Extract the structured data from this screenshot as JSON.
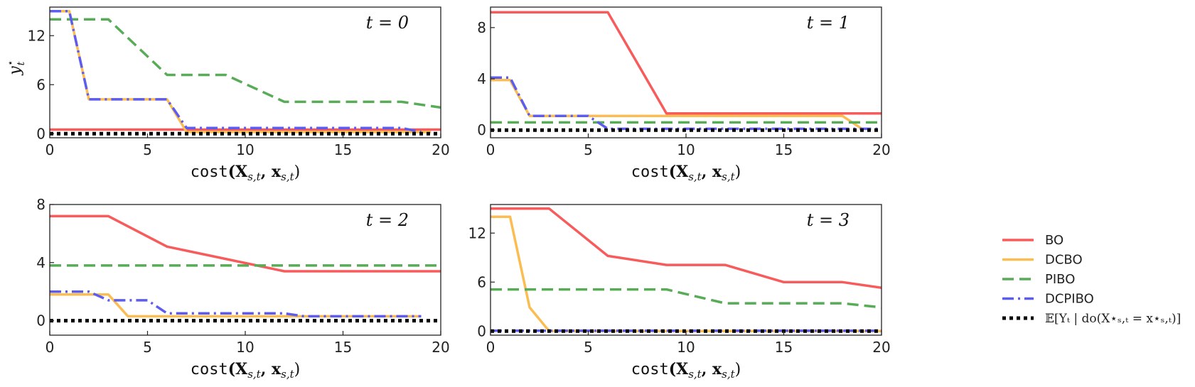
{
  "chart_data": [
    {
      "type": "line",
      "title": "t = 0",
      "xlabel": {
        "func": "cost",
        "expr": "(X",
        "sub1": "s,t",
        "mid": ", x",
        "sub2": "s,t",
        "close": ")"
      },
      "ylabel": {
        "main": "y",
        "sup": "⋆",
        "sub": "t"
      },
      "xlim": [
        0,
        20
      ],
      "ylim": [
        -0.5,
        15.5
      ],
      "xticks": [
        0,
        5,
        10,
        15,
        20
      ],
      "yticks": [
        0,
        6,
        12
      ],
      "series": [
        {
          "name": "BO",
          "x": [
            0,
            20
          ],
          "y": [
            0.5,
            0.5
          ]
        },
        {
          "name": "DCBO",
          "x": [
            0,
            1,
            2,
            6,
            7,
            19.5
          ],
          "y": [
            15,
            15,
            4.2,
            4.2,
            0.2,
            0.2
          ]
        },
        {
          "name": "PIBO",
          "x": [
            0,
            3,
            6,
            9,
            12,
            18,
            20
          ],
          "y": [
            14,
            14,
            7.2,
            7.2,
            3.9,
            3.9,
            3.2
          ]
        },
        {
          "name": "DCPIBO",
          "x": [
            0,
            1,
            2,
            6,
            7,
            18,
            19
          ],
          "y": [
            15,
            15,
            4.2,
            4.2,
            0.7,
            0.7,
            0.2
          ]
        },
        {
          "name": "E[Y_t | do(X*_{s,t} = x*_{s,t})]",
          "x": [
            0,
            20
          ],
          "y": [
            0,
            0
          ]
        }
      ]
    },
    {
      "type": "line",
      "title": "t = 1",
      "xlabel": {
        "func": "cost",
        "expr": "(X",
        "sub1": "s,t",
        "mid": ", x",
        "sub2": "s,t",
        "close": ")"
      },
      "xlim": [
        0,
        20
      ],
      "ylim": [
        -0.6,
        9.6
      ],
      "xticks": [
        0,
        5,
        10,
        15,
        20
      ],
      "yticks": [
        0,
        4,
        8
      ],
      "series": [
        {
          "name": "BO",
          "x": [
            0,
            6,
            9,
            20
          ],
          "y": [
            9.2,
            9.2,
            1.3,
            1.3
          ]
        },
        {
          "name": "DCBO",
          "x": [
            0,
            1,
            2,
            18,
            19
          ],
          "y": [
            3.9,
            3.9,
            1.1,
            1.1,
            0.1
          ]
        },
        {
          "name": "PIBO",
          "x": [
            0,
            20
          ],
          "y": [
            0.6,
            0.6
          ]
        },
        {
          "name": "DCPIBO",
          "x": [
            0,
            1,
            2,
            5,
            6,
            20
          ],
          "y": [
            4.1,
            4.1,
            1.1,
            1.1,
            0.1,
            0.1
          ]
        },
        {
          "name": "E[Y_t | do(X*_{s,t} = x*_{s,t})]",
          "x": [
            0,
            20
          ],
          "y": [
            0,
            0
          ]
        }
      ]
    },
    {
      "type": "line",
      "title": "t = 2",
      "xlabel": {
        "func": "cost",
        "expr": "(X",
        "sub1": "s,t",
        "mid": ", x",
        "sub2": "s,t",
        "close": ")"
      },
      "xlim": [
        0,
        20
      ],
      "ylim": [
        -1.0,
        8.0
      ],
      "xticks": [
        0,
        5,
        10,
        15,
        20
      ],
      "yticks": [
        0,
        4,
        8
      ],
      "series": [
        {
          "name": "BO",
          "x": [
            0,
            3,
            6,
            12,
            20
          ],
          "y": [
            7.2,
            7.2,
            5.1,
            3.4,
            3.4
          ]
        },
        {
          "name": "DCBO",
          "x": [
            0,
            3,
            4,
            19
          ],
          "y": [
            1.8,
            1.8,
            0.3,
            0.3
          ]
        },
        {
          "name": "PIBO",
          "x": [
            0,
            20
          ],
          "y": [
            3.8,
            3.8
          ]
        },
        {
          "name": "DCPIBO",
          "x": [
            0,
            2,
            3,
            5,
            6,
            12,
            13,
            19
          ],
          "y": [
            2.0,
            2.0,
            1.4,
            1.4,
            0.5,
            0.5,
            0.3,
            0.3
          ]
        },
        {
          "name": "E[Y_t | do(X*_{s,t} = x*_{s,t})]",
          "x": [
            0,
            20
          ],
          "y": [
            0,
            0
          ]
        }
      ]
    },
    {
      "type": "line",
      "title": "t = 3",
      "xlabel": {
        "func": "cost",
        "expr": "(X",
        "sub1": "s,t",
        "mid": ", x",
        "sub2": "s,t",
        "close": ")"
      },
      "xlim": [
        0,
        20
      ],
      "ylim": [
        -0.5,
        15.5
      ],
      "xticks": [
        0,
        5,
        10,
        15,
        20
      ],
      "yticks": [
        0,
        6,
        12
      ],
      "series": [
        {
          "name": "BO",
          "x": [
            0,
            3,
            6,
            9,
            12,
            15,
            18,
            20
          ],
          "y": [
            15,
            15,
            9.2,
            8.1,
            8.1,
            6.0,
            6.0,
            5.3
          ]
        },
        {
          "name": "DCBO",
          "x": [
            0,
            1,
            2,
            3,
            20
          ],
          "y": [
            14,
            14,
            2.9,
            0,
            0
          ]
        },
        {
          "name": "PIBO",
          "x": [
            0,
            9,
            12,
            18,
            20
          ],
          "y": [
            5.1,
            5.1,
            3.4,
            3.4,
            2.9
          ]
        },
        {
          "name": "DCPIBO",
          "x": [
            0,
            20
          ],
          "y": [
            0.05,
            0.05
          ]
        },
        {
          "name": "E[Y_t | do(X*_{s,t} = x*_{s,t})]",
          "x": [
            0,
            20
          ],
          "y": [
            0,
            0
          ]
        }
      ]
    }
  ],
  "styles": {
    "BO": {
      "color": "#f85b5b",
      "dash": ""
    },
    "DCBO": {
      "color": "#fbbd52",
      "dash": ""
    },
    "PIBO": {
      "color": "#58ac58",
      "dash": "16 8"
    },
    "DCPIBO": {
      "color": "#5d5cf0",
      "dash": "16 6 3 6"
    },
    "E[Y_t | do(X*_{s,t} = x*_{s,t})]": {
      "color": "#000000",
      "dash": "5 5"
    }
  },
  "legend": {
    "position": "right",
    "items": [
      {
        "key": "BO",
        "label": "BO"
      },
      {
        "key": "DCBO",
        "label": "DCBO"
      },
      {
        "key": "PIBO",
        "label": "PIBO"
      },
      {
        "key": "DCPIBO",
        "label": "DCPIBO"
      },
      {
        "key": "E[Y_t | do(X*_{s,t} = x*_{s,t})]",
        "label": "𝔼[Yₜ | do(X⋆ₛ,ₜ = x⋆ₛ,ₜ)]"
      }
    ]
  }
}
